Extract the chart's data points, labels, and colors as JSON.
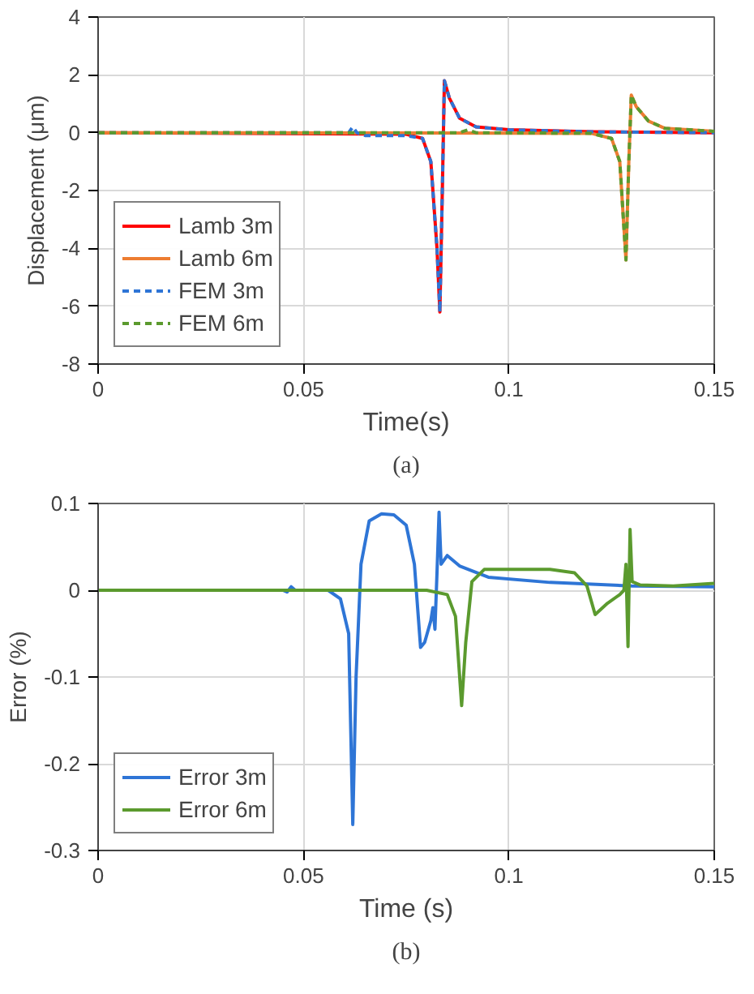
{
  "chart_data": [
    {
      "type": "line",
      "xlabel": "Time(s)",
      "ylabel": "Displacement (μm)",
      "annotations": [
        "(a)"
      ],
      "xlim": [
        0,
        0.15
      ],
      "xticks": [
        0,
        0.05,
        0.1,
        0.15
      ],
      "ylim": [
        -8,
        4
      ],
      "yticks": [
        -8,
        -6,
        -4,
        -2,
        0,
        2,
        4
      ],
      "grid": true,
      "legend": "bottom left",
      "series": [
        {
          "name": "Lamb 3m",
          "color": "#ff0000",
          "line_style": "solid",
          "x": [
            0,
            0.075,
            0.079,
            0.081,
            0.0825,
            0.0832,
            0.0838,
            0.0843,
            0.0855,
            0.088,
            0.092,
            0.1,
            0.12,
            0.15
          ],
          "values": [
            0,
            -0.05,
            -0.2,
            -1,
            -4,
            -6.2,
            -2,
            1.8,
            1.2,
            0.5,
            0.2,
            0.1,
            0.03,
            0
          ]
        },
        {
          "name": "Lamb 6m",
          "color": "#ed7d31",
          "line_style": "solid",
          "x": [
            0,
            0.12,
            0.125,
            0.127,
            0.1285,
            0.1292,
            0.1298,
            0.131,
            0.134,
            0.138,
            0.15
          ],
          "values": [
            0,
            -0.02,
            -0.2,
            -1,
            -4.4,
            -1,
            1.3,
            0.9,
            0.4,
            0.15,
            0.05
          ]
        },
        {
          "name": "FEM 3m",
          "color": "#2e75d6",
          "line_style": "dashed",
          "x": [
            0,
            0.061,
            0.062,
            0.063,
            0.065,
            0.075,
            0.079,
            0.081,
            0.0825,
            0.0832,
            0.0838,
            0.0843,
            0.0855,
            0.088,
            0.092,
            0.1,
            0.12,
            0.15
          ],
          "values": [
            0,
            0,
            0.2,
            0,
            -0.1,
            -0.1,
            -0.2,
            -1,
            -4,
            -6.2,
            -2,
            1.8,
            1.2,
            0.5,
            0.2,
            0.1,
            0.03,
            0
          ]
        },
        {
          "name": "FEM 6m",
          "color": "#5b9a2e",
          "line_style": "dashed",
          "x": [
            0,
            0.088,
            0.09,
            0.092,
            0.12,
            0.125,
            0.127,
            0.1285,
            0.1292,
            0.1298,
            0.131,
            0.134,
            0.138,
            0.15
          ],
          "values": [
            0,
            0,
            0.1,
            0,
            -0.02,
            -0.2,
            -1,
            -4.4,
            -1,
            1.3,
            0.9,
            0.4,
            0.15,
            0.05
          ]
        }
      ]
    },
    {
      "type": "line",
      "xlabel": "Time (s)",
      "ylabel": "Error (%)",
      "annotations": [
        "(b)"
      ],
      "xlim": [
        0,
        0.15
      ],
      "xticks": [
        0,
        0.05,
        0.1,
        0.15
      ],
      "ylim": [
        -0.3,
        0.1
      ],
      "yticks": [
        -0.3,
        -0.2,
        -0.1,
        0,
        0.1
      ],
      "grid": true,
      "legend": "bottom left",
      "series": [
        {
          "name": "Error 3m",
          "color": "#2e75d6",
          "line_style": "solid",
          "x": [
            0,
            0.045,
            0.046,
            0.047,
            0.048,
            0.056,
            0.059,
            0.061,
            0.062,
            0.0628,
            0.064,
            0.066,
            0.069,
            0.072,
            0.075,
            0.077,
            0.0785,
            0.0795,
            0.081,
            0.0815,
            0.082,
            0.0825,
            0.083,
            0.0835,
            0.085,
            0.088,
            0.095,
            0.11,
            0.13,
            0.15
          ],
          "values": [
            0,
            0,
            -0.002,
            0.004,
            0,
            0,
            -0.01,
            -0.05,
            -0.27,
            -0.1,
            0.03,
            0.08,
            0.088,
            0.087,
            0.075,
            0.03,
            -0.066,
            -0.06,
            -0.035,
            -0.02,
            -0.045,
            0.02,
            0.09,
            0.03,
            0.04,
            0.028,
            0.015,
            0.009,
            0.005,
            0.004
          ]
        },
        {
          "name": "Error 6m",
          "color": "#5b9a2e",
          "line_style": "solid",
          "x": [
            0,
            0.08,
            0.085,
            0.087,
            0.0885,
            0.0895,
            0.091,
            0.094,
            0.11,
            0.116,
            0.119,
            0.121,
            0.124,
            0.127,
            0.128,
            0.1285,
            0.129,
            0.1295,
            0.13,
            0.132,
            0.14,
            0.15
          ],
          "values": [
            0,
            0,
            -0.005,
            -0.03,
            -0.133,
            -0.06,
            0.01,
            0.024,
            0.024,
            0.02,
            0.005,
            -0.028,
            -0.015,
            -0.005,
            0,
            0.03,
            -0.065,
            0.07,
            0.01,
            0.006,
            0.005,
            0.008
          ]
        }
      ]
    }
  ]
}
